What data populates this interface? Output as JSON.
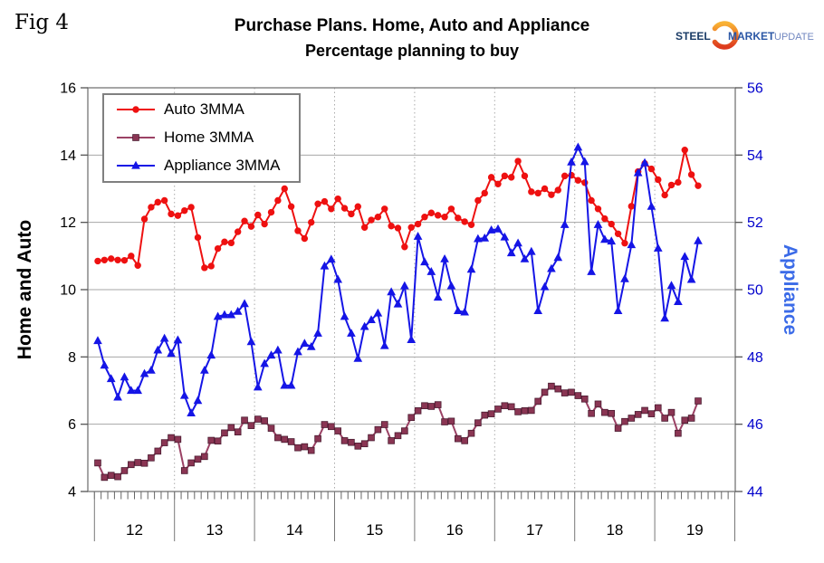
{
  "fig_label": "Fig 4",
  "title_line1": "Purchase Plans. Home, Auto and Appliance",
  "title_line2": "Percentage planning to buy",
  "logo": {
    "steel": "STEEL",
    "market": "MARKET",
    "update": "UPDATE",
    "steel_color": "#1A3B66",
    "market_color": "#2B57A5",
    "update_color": "#7187C0",
    "swoosh_top_color": "#F9B234",
    "swoosh_bottom_color": "#DD3A1E"
  },
  "left_axis": {
    "label": "Home and Auto",
    "min": 4,
    "max": 16,
    "ticks": [
      16,
      14,
      12,
      10,
      8,
      6,
      4
    ],
    "color": "#000000"
  },
  "right_axis": {
    "label": "Appliance",
    "min": 44,
    "max": 56,
    "ticks": [
      56,
      54,
      52,
      50,
      48,
      46,
      44
    ],
    "color": "#0000CC"
  },
  "x_axis": {
    "year_labels": [
      "12",
      "13",
      "14",
      "15",
      "16",
      "17",
      "18",
      "19"
    ],
    "months_per_year": 12
  },
  "chart_data": {
    "type": "line",
    "start": "2012-01",
    "frequency": "monthly",
    "title": "Purchase Plans. Home, Auto and Appliance — Percentage planning to buy",
    "left_ylim": [
      4,
      16
    ],
    "right_ylim": [
      44,
      56
    ],
    "grid": {
      "horizontal": "solid",
      "vertical": "dotted-at-year-boundaries"
    },
    "legend_position": "top-left-inside",
    "series": [
      {
        "name": "Auto 3MMA",
        "axis": "left",
        "color": "#EE1111",
        "marker": "circle",
        "values": [
          10.85,
          10.88,
          10.92,
          10.88,
          10.87,
          11.0,
          10.72,
          12.1,
          12.45,
          12.6,
          12.65,
          12.25,
          12.2,
          12.35,
          12.45,
          11.55,
          10.65,
          10.7,
          11.22,
          11.42,
          11.39,
          11.72,
          12.04,
          11.88,
          12.22,
          11.95,
          12.3,
          12.65,
          13.0,
          12.47,
          11.75,
          11.52,
          12.0,
          12.55,
          12.62,
          12.4,
          12.7,
          12.42,
          12.25,
          12.47,
          11.85,
          12.07,
          12.16,
          12.4,
          11.89,
          11.83,
          11.27,
          11.85,
          11.95,
          12.16,
          12.28,
          12.21,
          12.16,
          12.4,
          12.13,
          12.02,
          11.93,
          12.65,
          12.87,
          13.34,
          13.14,
          13.38,
          13.34,
          13.82,
          13.38,
          12.91,
          12.87,
          13.0,
          12.82,
          12.96,
          13.38,
          13.4,
          13.25,
          13.18,
          12.65,
          12.4,
          12.11,
          11.95,
          11.66,
          11.38,
          12.48,
          13.51,
          13.75,
          13.59,
          13.27,
          12.81,
          13.11,
          13.19,
          14.15,
          13.42,
          13.09
        ]
      },
      {
        "name": "Home 3MMA",
        "axis": "left",
        "color": "#9B4265",
        "marker": "square",
        "marker_fill": "#8A3553",
        "values": [
          4.85,
          4.42,
          4.48,
          4.44,
          4.62,
          4.8,
          4.86,
          4.84,
          5.0,
          5.2,
          5.45,
          5.6,
          5.55,
          4.62,
          4.85,
          4.96,
          5.04,
          5.52,
          5.5,
          5.74,
          5.9,
          5.77,
          6.12,
          5.96,
          6.15,
          6.1,
          5.88,
          5.6,
          5.55,
          5.48,
          5.3,
          5.33,
          5.22,
          5.57,
          5.99,
          5.93,
          5.8,
          5.51,
          5.46,
          5.35,
          5.42,
          5.6,
          5.84,
          5.99,
          5.51,
          5.66,
          5.8,
          6.2,
          6.4,
          6.55,
          6.53,
          6.58,
          6.07,
          6.09,
          5.57,
          5.51,
          5.73,
          6.04,
          6.27,
          6.31,
          6.45,
          6.55,
          6.52,
          6.37,
          6.4,
          6.41,
          6.68,
          6.95,
          7.13,
          7.05,
          6.93,
          6.95,
          6.85,
          6.75,
          6.32,
          6.6,
          6.35,
          6.32,
          5.88,
          6.08,
          6.18,
          6.29,
          6.41,
          6.31,
          6.49,
          6.18,
          6.35,
          5.73,
          6.12,
          6.18,
          6.69
        ]
      },
      {
        "name": "Appliance 3MMA",
        "axis": "right",
        "color": "#1515E6",
        "marker": "triangle",
        "values": [
          48.48,
          47.75,
          47.35,
          46.8,
          47.4,
          47.0,
          47.0,
          47.5,
          47.6,
          48.2,
          48.55,
          48.1,
          48.5,
          46.85,
          46.33,
          46.7,
          47.6,
          48.05,
          49.2,
          49.25,
          49.25,
          49.35,
          49.58,
          48.45,
          47.1,
          47.8,
          48.05,
          48.2,
          47.15,
          47.15,
          48.15,
          48.4,
          48.3,
          48.7,
          50.7,
          50.9,
          50.3,
          49.2,
          48.7,
          47.95,
          48.9,
          49.1,
          49.3,
          48.33,
          49.93,
          49.57,
          50.11,
          48.51,
          51.58,
          50.82,
          50.53,
          49.77,
          50.91,
          50.11,
          49.37,
          49.33,
          50.6,
          51.51,
          51.53,
          51.77,
          51.8,
          51.56,
          51.09,
          51.38,
          50.91,
          51.13,
          49.37,
          50.08,
          50.62,
          50.95,
          51.93,
          53.79,
          54.23,
          53.8,
          50.53,
          51.93,
          51.49,
          51.44,
          49.37,
          50.32,
          51.33,
          53.47,
          53.77,
          52.47,
          51.23,
          49.15,
          50.12,
          49.64,
          50.98,
          50.3,
          51.45
        ]
      }
    ]
  }
}
